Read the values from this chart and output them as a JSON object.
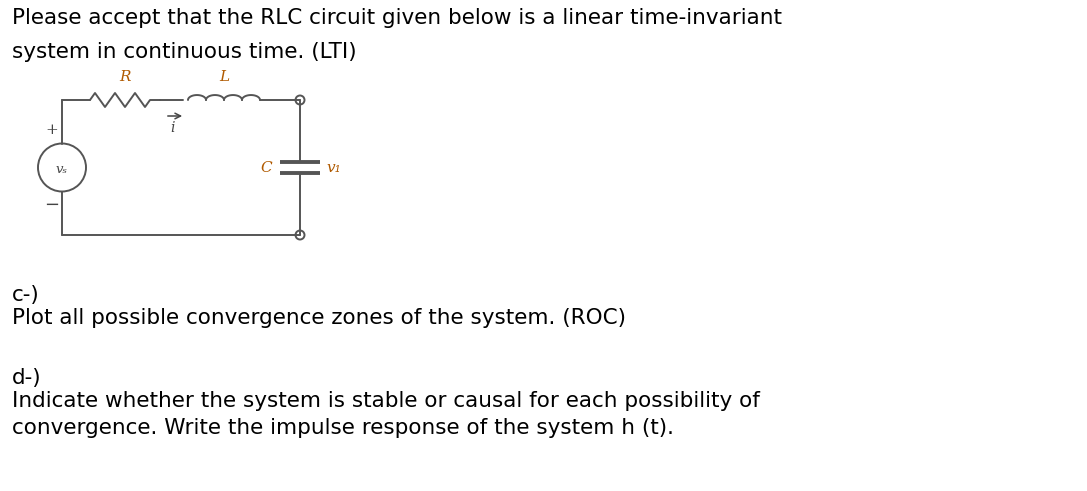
{
  "title_line1": "Please accept that the RLC circuit given below is a linear time-invariant",
  "title_line2": "system in continuous time. (LTI)",
  "part_c_label": "c-)",
  "part_c_text": "Plot all possible convergence zones of the system. (ROC)",
  "part_d_label": "d-)",
  "part_d_line1": "Indicate whether the system is stable or causal for each possibility of",
  "part_d_line2": "convergence. Write the impulse response of the system h (t).",
  "bg_color": "#ffffff",
  "text_color": "#000000",
  "font_size_main": 15.5,
  "circuit_label_R": "R",
  "circuit_label_L": "L",
  "circuit_label_i": "i",
  "circuit_label_C": "C",
  "circuit_label_v1": "v₁",
  "circuit_label_vs": "vₛ",
  "circuit_label_plus": "+",
  "circuit_label_minus": "−",
  "lw": 1.4,
  "circuit_color": "#555555",
  "circuit_label_color": "#b05a00",
  "circuit_text_color": "#444444"
}
